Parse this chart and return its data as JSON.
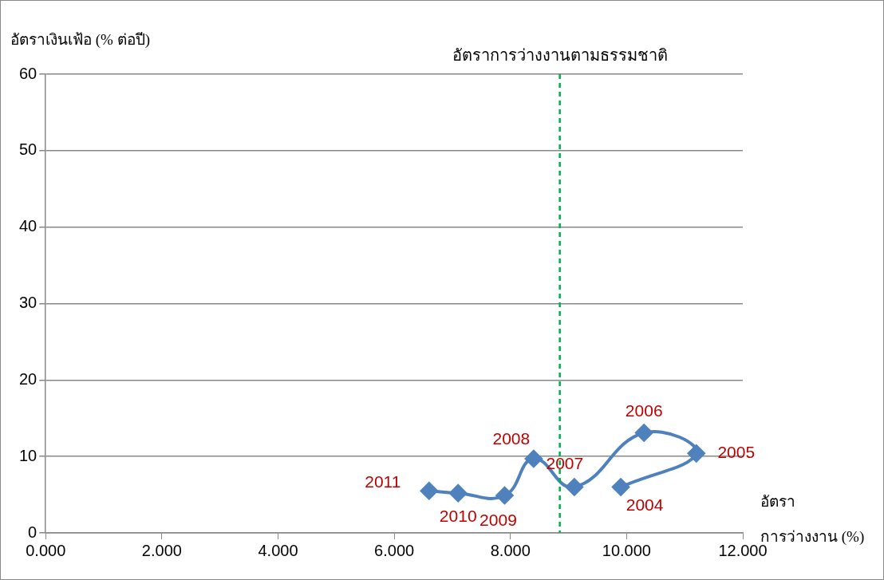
{
  "chart_data": {
    "type": "line",
    "ylabel": "อัตราเงินเฟ้อ (% ต่อปี)",
    "xlabel": "อัตรา\nการว่างงาน (%)",
    "series": [
      {
        "color": "#4f81bd",
        "x": [
          9.9,
          11.2,
          10.3,
          9.1,
          8.4,
          7.9,
          7.1,
          6.6
        ],
        "values": [
          6.0,
          10.4,
          13.1,
          6.0,
          9.7,
          4.9,
          5.2,
          5.5
        ]
      }
    ],
    "annotations": [
      {
        "text": "2004",
        "x": 9.9,
        "y": 6.0
      },
      {
        "text": "2005",
        "x": 11.2,
        "y": 10.4
      },
      {
        "text": "2006",
        "x": 10.3,
        "y": 13.1
      },
      {
        "text": "2007",
        "x": 9.1,
        "y": 6.0
      },
      {
        "text": "2008",
        "x": 8.4,
        "y": 9.7
      },
      {
        "text": "2009",
        "x": 7.9,
        "y": 4.9
      },
      {
        "text": "2010",
        "x": 7.1,
        "y": 5.2
      },
      {
        "text": "2011",
        "x": 6.6,
        "y": 5.5
      }
    ],
    "ref_lines": [
      {
        "axis": "x",
        "value": 8.85,
        "label": "อัตราการว่างงานตามธรรมชาติ",
        "color": "#00b050",
        "line_style": "dashed"
      }
    ],
    "xlim": [
      0,
      12
    ],
    "xticks": [
      {
        "value": 0,
        "label": "0.000"
      },
      {
        "value": 2,
        "label": "2.000"
      },
      {
        "value": 4,
        "label": "4.000"
      },
      {
        "value": 6,
        "label": "6.000"
      },
      {
        "value": 8,
        "label": "8.000"
      },
      {
        "value": 10,
        "label": "10.000"
      },
      {
        "value": 12,
        "label": "12.000"
      }
    ],
    "ylim": [
      0,
      60
    ],
    "yticks": [
      0,
      10,
      20,
      30,
      40,
      50,
      60
    ],
    "grid": "y",
    "marker": "diamond",
    "line_style": "solid",
    "legend": false
  }
}
